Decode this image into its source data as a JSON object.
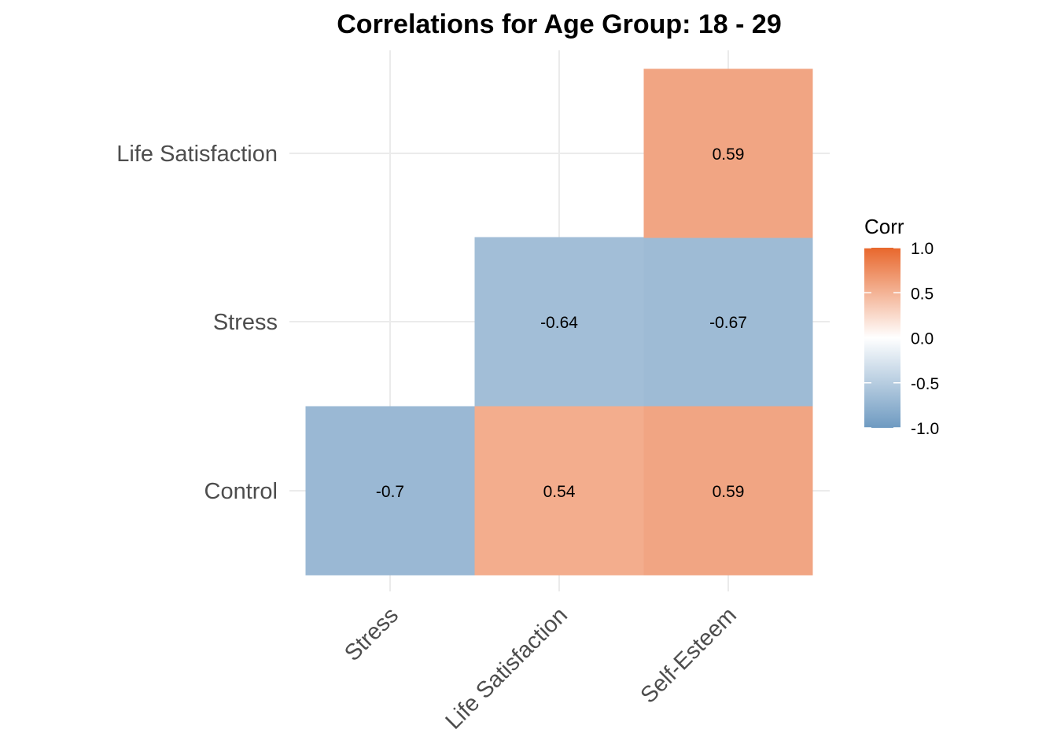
{
  "chart_data": {
    "type": "heatmap",
    "title": "Correlations for Age Group: 18 - 29",
    "x_categories": [
      "Stress",
      "Life Satisfaction",
      "Self-Esteem"
    ],
    "y_categories": [
      "Control",
      "Stress",
      "Life Satisfaction"
    ],
    "cells": [
      {
        "x": "Stress",
        "y": "Control",
        "value": -0.7,
        "label": "-0.7"
      },
      {
        "x": "Life Satisfaction",
        "y": "Control",
        "value": 0.54,
        "label": "0.54"
      },
      {
        "x": "Self-Esteem",
        "y": "Control",
        "value": 0.59,
        "label": "0.59"
      },
      {
        "x": "Life Satisfaction",
        "y": "Stress",
        "value": -0.64,
        "label": "-0.64"
      },
      {
        "x": "Self-Esteem",
        "y": "Stress",
        "value": -0.67,
        "label": "-0.67"
      },
      {
        "x": "Self-Esteem",
        "y": "Life Satisfaction",
        "value": 0.59,
        "label": "0.59"
      }
    ],
    "legend": {
      "title": "Corr",
      "position": "right",
      "limits": [
        -1.0,
        1.0
      ],
      "ticks": [
        {
          "value": 1.0,
          "label": "1.0"
        },
        {
          "value": 0.5,
          "label": "0.5"
        },
        {
          "value": 0.0,
          "label": "0.0"
        },
        {
          "value": -0.5,
          "label": "-0.5"
        },
        {
          "value": -1.0,
          "label": "-1.0"
        }
      ],
      "colors": {
        "low": "#6e9ac1",
        "mid": "#ffffff",
        "high": "#e8672c"
      }
    },
    "grid": true
  }
}
